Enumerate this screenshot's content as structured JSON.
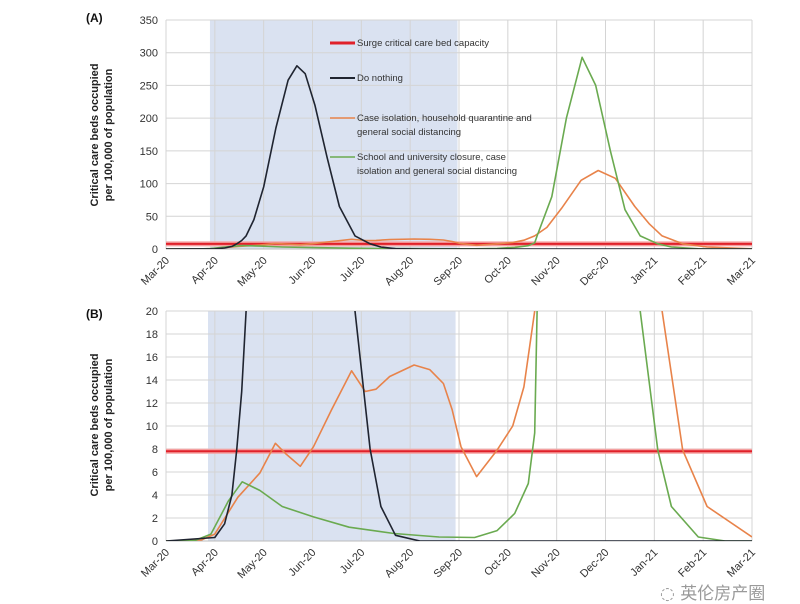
{
  "chart_data": [
    {
      "type": "line",
      "panel_label": "(A)",
      "ylabel": [
        "Critical care beds occupied",
        "per 100,000 of population"
      ],
      "ylim": [
        0,
        350
      ],
      "yticks": [
        "0",
        "50",
        "100",
        "150",
        "200",
        "250",
        "300",
        "350"
      ],
      "xlim": [
        0,
        12
      ],
      "xticks": [
        "Mar-20",
        "Apr-20",
        "May-20",
        "Jun-20",
        "Jul-20",
        "Aug-20",
        "Sep-20",
        "Oct-20",
        "Nov-20",
        "Dec-20",
        "Jan-21",
        "Feb-21",
        "Mar-21"
      ],
      "shaded_interval_months": [
        0.9,
        5.97
      ],
      "grid": true,
      "legend": {
        "placement": "top-center"
      },
      "capacity": {
        "name": "Surge critical care bed capacity",
        "value": 7.8,
        "color": "#e0212a"
      },
      "series": [
        {
          "name": "Do nothing",
          "color": "#1f2430",
          "legend": [
            "Do nothing"
          ],
          "points": [
            [
              0,
              0
            ],
            [
              1,
              0.3
            ],
            [
              1.2,
              1.5
            ],
            [
              1.35,
              4
            ],
            [
              1.45,
              8
            ],
            [
              1.55,
              13
            ],
            [
              1.64,
              20
            ],
            [
              1.8,
              45
            ],
            [
              2,
              95
            ],
            [
              2.25,
              185
            ],
            [
              2.5,
              258
            ],
            [
              2.68,
              280
            ],
            [
              2.85,
              268
            ],
            [
              3.05,
              220
            ],
            [
              3.3,
              140
            ],
            [
              3.55,
              65
            ],
            [
              3.87,
              20
            ],
            [
              4.18,
              8
            ],
            [
              4.4,
              3
            ],
            [
              4.7,
              0.5
            ],
            [
              5.2,
              0
            ],
            [
              12,
              0
            ]
          ]
        },
        {
          "name": "Case isolation, household quarantine and general social distancing",
          "color": "#e8834a",
          "legend": [
            "Case isolation, household quarantine and",
            "general social distancing"
          ],
          "points": [
            [
              0,
              0
            ],
            [
              0.73,
              0.1
            ],
            [
              1,
              0.6
            ],
            [
              1.47,
              3.8
            ],
            [
              1.92,
              5.9
            ],
            [
              2.24,
              8.5
            ],
            [
              2.45,
              7.6
            ],
            [
              2.75,
              6.5
            ],
            [
              3.02,
              8.2
            ],
            [
              3.39,
              11.4
            ],
            [
              3.8,
              14.8
            ],
            [
              4.08,
              13
            ],
            [
              4.3,
              13.2
            ],
            [
              4.58,
              14.3
            ],
            [
              5.08,
              15.3
            ],
            [
              5.4,
              14.9
            ],
            [
              5.68,
              13.7
            ],
            [
              5.86,
              11.4
            ],
            [
              6.04,
              8.2
            ],
            [
              6.36,
              5.6
            ],
            [
              6.78,
              7.9
            ],
            [
              7.1,
              10
            ],
            [
              7.33,
              13.4
            ],
            [
              7.55,
              20
            ],
            [
              7.8,
              33
            ],
            [
              8.1,
              62
            ],
            [
              8.5,
              105
            ],
            [
              8.85,
              120
            ],
            [
              9.2,
              108
            ],
            [
              9.6,
              65
            ],
            [
              9.9,
              38
            ],
            [
              10.16,
              20
            ],
            [
              10.58,
              7.9
            ],
            [
              11.08,
              3
            ],
            [
              12,
              0.35
            ]
          ]
        },
        {
          "name": "School and university closure, case isolation and general social distancing",
          "color": "#6aaa50",
          "legend": [
            "School and university closure, case",
            "isolation and general social distancing"
          ],
          "points": [
            [
              0,
              0
            ],
            [
              0.6,
              0.05
            ],
            [
              0.92,
              0.6
            ],
            [
              1.28,
              3.5
            ],
            [
              1.56,
              5.15
            ],
            [
              1.92,
              4.4
            ],
            [
              2.38,
              3
            ],
            [
              3.02,
              2.1
            ],
            [
              3.75,
              1.2
            ],
            [
              4.67,
              0.65
            ],
            [
              5.59,
              0.35
            ],
            [
              6.32,
              0.3
            ],
            [
              6.78,
              0.9
            ],
            [
              7.14,
              2.4
            ],
            [
              7.42,
              5
            ],
            [
              7.55,
              9.4
            ],
            [
              7.6,
              20
            ],
            [
              7.9,
              80
            ],
            [
              8.2,
              200
            ],
            [
              8.52,
              293
            ],
            [
              8.8,
              250
            ],
            [
              9.1,
              150
            ],
            [
              9.4,
              60
            ],
            [
              9.71,
              20
            ],
            [
              10.07,
              7.9
            ],
            [
              10.35,
              3
            ],
            [
              10.9,
              0.35
            ],
            [
              11.45,
              0
            ],
            [
              12,
              0
            ]
          ]
        }
      ]
    },
    {
      "type": "line",
      "panel_label": "(B)",
      "ylabel": [
        "Critical care beds occupied",
        "per 100,000 of population"
      ],
      "ylim": [
        0,
        20
      ],
      "yticks": [
        "0",
        "2",
        "4",
        "6",
        "8",
        "10",
        "12",
        "14",
        "16",
        "18",
        "20"
      ],
      "xlim": [
        0,
        12
      ],
      "xticks": [
        "Mar-20",
        "Apr-20",
        "May-20",
        "Jun-20",
        "Jul-20",
        "Aug-20",
        "Sep-20",
        "Oct-20",
        "Nov-20",
        "Dec-20",
        "Jan-21",
        "Feb-21",
        "Mar-21"
      ],
      "shaded_interval_months": [
        0.86,
        5.93
      ],
      "grid": true,
      "same_series_as_panel": "(A)"
    }
  ],
  "watermark": "英伦房产圈"
}
